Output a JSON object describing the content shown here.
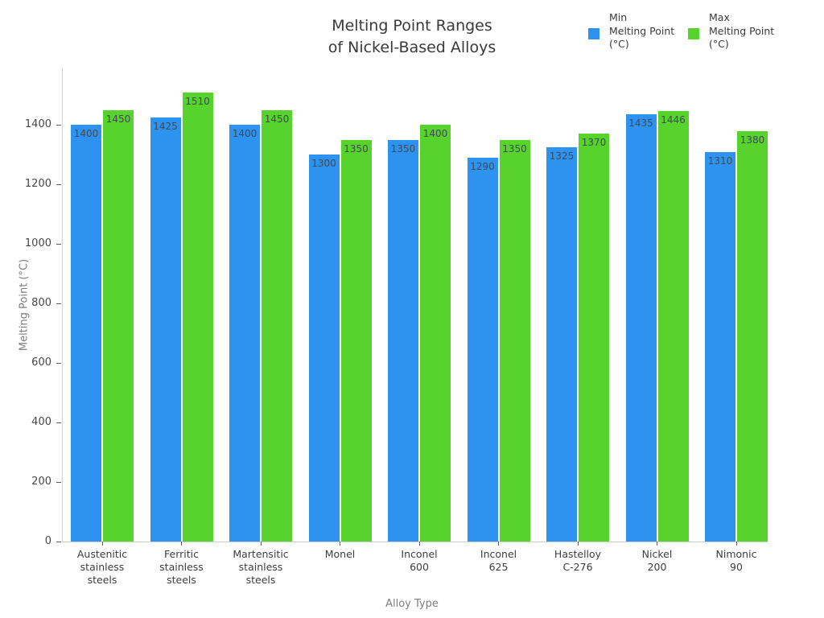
{
  "title": "Melting Point Ranges\nof Nickel-Based Alloys",
  "chart_data": {
    "type": "bar",
    "title": "Melting Point Ranges\nof Nickel-Based Alloys",
    "xlabel": "Alloy Type",
    "ylabel": "Melting Point (°C)",
    "categories": [
      "Austenitic\nstainless\nsteels",
      "Ferritic\nstainless\nsteels",
      "Martensitic\nstainless\nsteels",
      "Monel",
      "Inconel\n600",
      "Inconel\n625",
      "Hastelloy\nC-276",
      "Nickel\n200",
      "Nimonic\n90"
    ],
    "series": [
      {
        "name": "Min Melting Point (°C)",
        "legend_label": "Min\nMelting Point\n(°C)",
        "color": "#2e93f0",
        "values": [
          1400,
          1425,
          1400,
          1300,
          1350,
          1290,
          1325,
          1435,
          1310
        ]
      },
      {
        "name": "Max Melting Point (°C)",
        "legend_label": "Max\nMelting Point\n(°C)",
        "color": "#58d22d",
        "values": [
          1450,
          1510,
          1450,
          1350,
          1400,
          1350,
          1370,
          1446,
          1380
        ]
      }
    ],
    "yticks": [
      0,
      200,
      400,
      600,
      800,
      1000,
      1200,
      1400
    ],
    "ylim": [
      0,
      1590
    ],
    "grid": false,
    "bar_value_labels": true,
    "legend_position": "top-right",
    "colors": {
      "min_bar": "#2e93f0",
      "max_bar": "#58d22d",
      "spine": "#cfcfcf",
      "tick": "#5a5a5a",
      "title_text": "#3a3a3a",
      "axis_title_text": "#7d7d7d",
      "bar_label_text": "#3f4a52"
    }
  }
}
